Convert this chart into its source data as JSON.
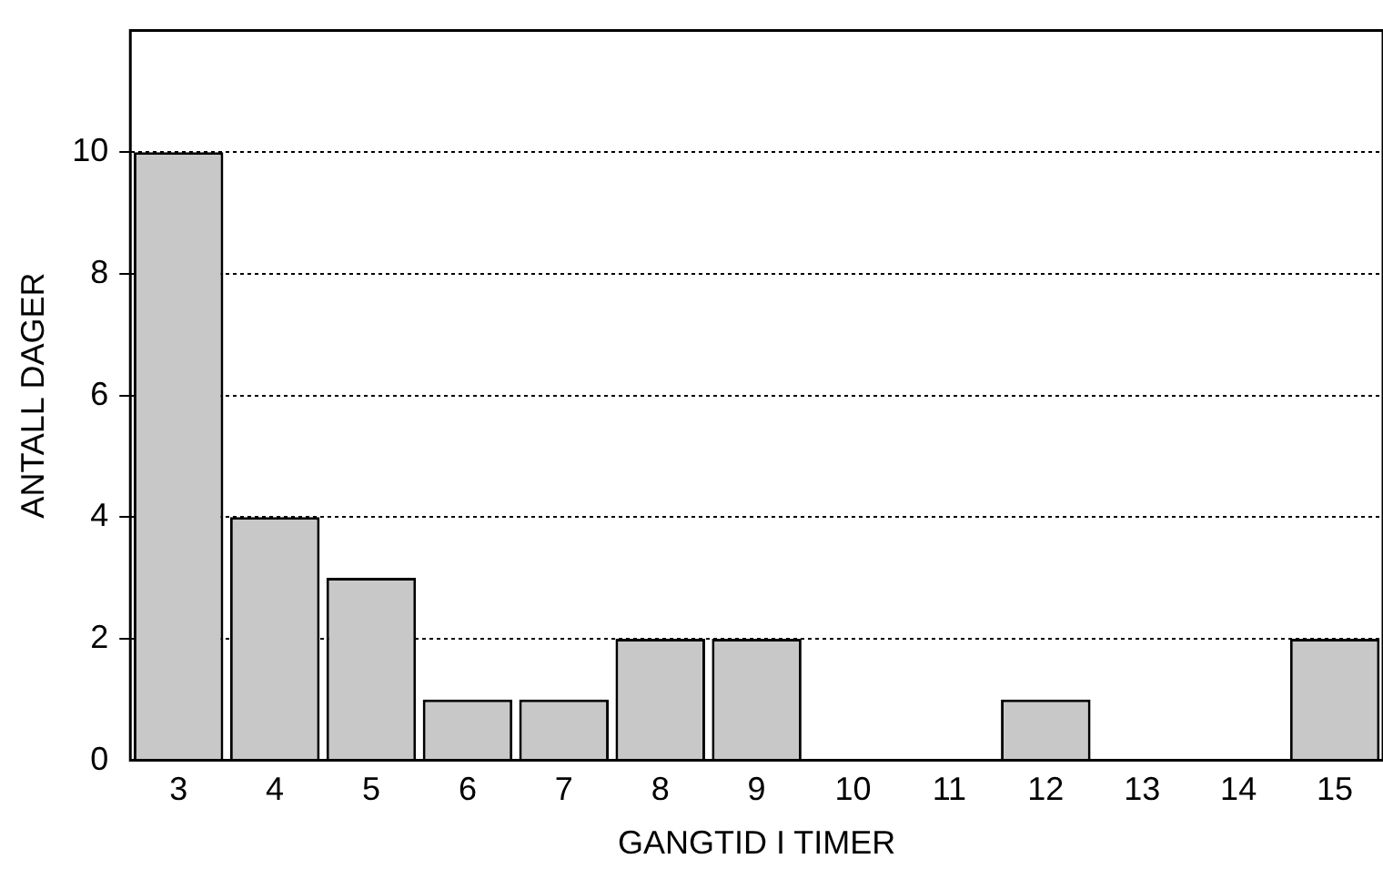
{
  "chart_data": {
    "type": "bar",
    "xlabel": "GANGTID I TIMER",
    "ylabel": "ANTALL DAGER",
    "categories": [
      "3",
      "4",
      "5",
      "6",
      "7",
      "8",
      "9",
      "10",
      "11",
      "12",
      "13",
      "14",
      "15"
    ],
    "values": [
      10,
      4,
      3,
      1,
      1,
      2,
      2,
      0,
      0,
      1,
      0,
      0,
      2
    ],
    "color": "#c8c8c8",
    "ylim": [
      0,
      12
    ],
    "yticks": [
      0,
      2,
      4,
      6,
      8,
      10
    ],
    "grid": "y",
    "legend": false
  }
}
